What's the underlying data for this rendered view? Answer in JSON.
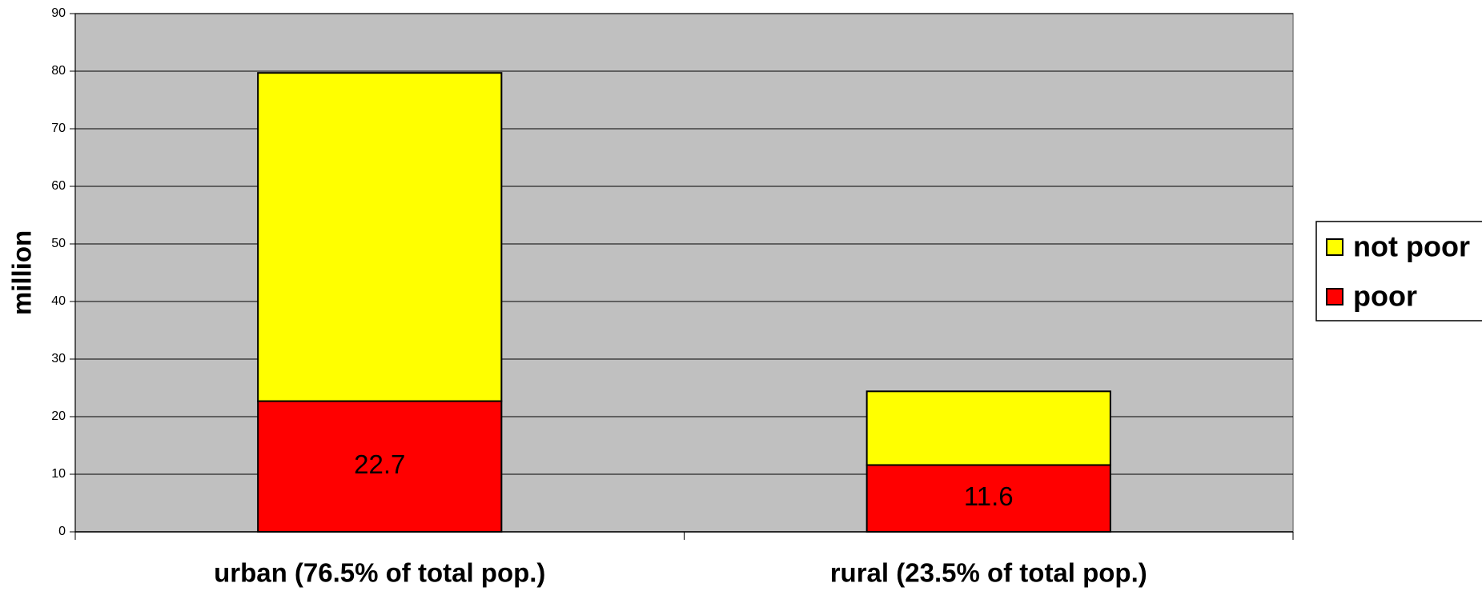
{
  "chart_data": {
    "type": "stacked_bar",
    "y_label": "million",
    "categories": [
      "urban (76.5% of total pop.)",
      "rural (23.5% of total pop.)"
    ],
    "series": [
      {
        "name": "poor",
        "color": "#ff0000",
        "values": [
          22.7,
          11.6
        ],
        "show_labels": true
      },
      {
        "name": "not poor",
        "color": "#ffff00",
        "values": [
          57.0,
          12.8
        ],
        "show_labels": false
      }
    ],
    "ylim": [
      0,
      90
    ],
    "yticks": [
      0,
      10,
      20,
      30,
      40,
      50,
      60,
      70,
      80,
      90
    ],
    "grid": true,
    "plot_background": "#c0c0c0",
    "legend": "right"
  }
}
